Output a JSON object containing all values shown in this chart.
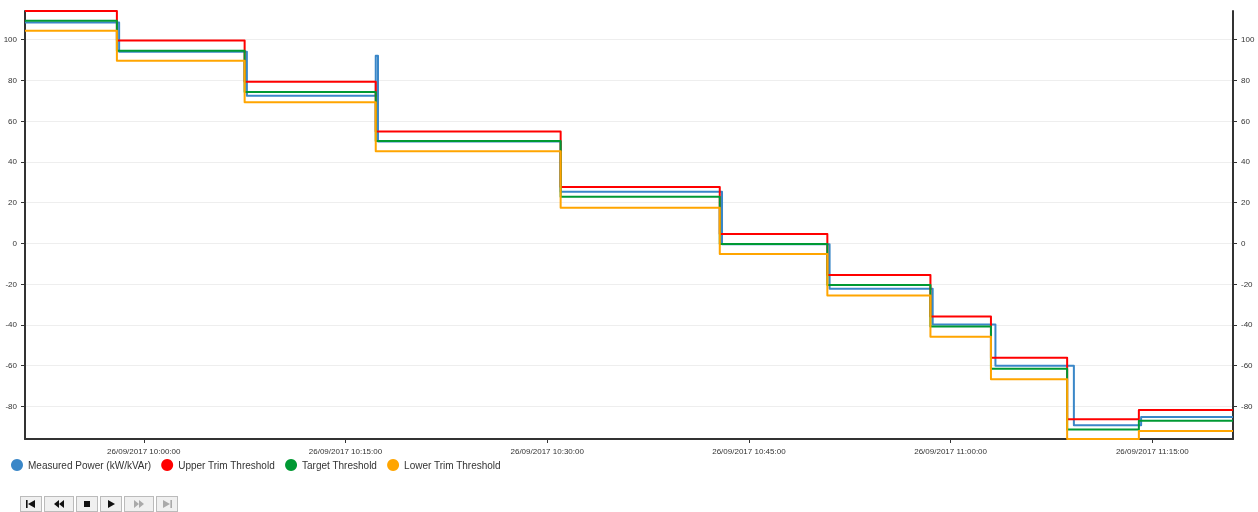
{
  "chart_data": {
    "type": "step",
    "xlim": [
      "2017-09-26T09:51:10",
      "2017-09-26T11:21:00"
    ],
    "xticks": [
      {
        "value": "2017-09-26T10:00",
        "label": "26/09/2017 10:00:00"
      },
      {
        "value": "2017-09-26T10:15",
        "label": "26/09/2017 10:15:00"
      },
      {
        "value": "2017-09-26T10:30",
        "label": "26/09/2017 10:30:00"
      },
      {
        "value": "2017-09-26T10:45",
        "label": "26/09/2017 10:45:00"
      },
      {
        "value": "2017-09-26T11:00",
        "label": "26/09/2017 11:00:00"
      },
      {
        "value": "2017-09-26T11:15",
        "label": "26/09/2017 11:15:00"
      }
    ],
    "ylim": [
      -96,
      114
    ],
    "yticks": [
      -80,
      -60,
      -40,
      -20,
      0,
      20,
      40,
      60,
      80,
      100
    ],
    "y2lim": [
      -96,
      114
    ],
    "y2ticks": [
      -80,
      -60,
      -40,
      -20,
      0,
      20,
      40,
      60,
      80,
      100
    ],
    "grid": "y",
    "legend": "bottom left",
    "series": [
      {
        "name": "Measured Power (kW/kVAr)",
        "color": "#3a87c8",
        "x": [
          "2017-09-26T09:51:10",
          "2017-09-26T09:58:10",
          "2017-09-26T10:07:40",
          "2017-09-26T10:17:15",
          "2017-09-26T10:17:25",
          "2017-09-26T10:31:00",
          "2017-09-26T10:43:00",
          "2017-09-26T10:51:00",
          "2017-09-26T10:58:40",
          "2017-09-26T11:03:20",
          "2017-09-26T11:09:10",
          "2017-09-26T11:14:10",
          "2017-09-26T11:21:00"
        ],
        "values": [
          108.4,
          94,
          72.4,
          92,
          50,
          25.3,
          -0.5,
          -22.3,
          -39.8,
          -60,
          -89.2,
          -85.2,
          -85.2
        ]
      },
      {
        "name": "Upper Trim Threshold",
        "color": "#ff0000",
        "x": [
          "2017-09-26T09:51:10",
          "2017-09-26T09:58:00",
          "2017-09-26T10:07:30",
          "2017-09-26T10:17:15",
          "2017-09-26T10:31:00",
          "2017-09-26T10:42:50",
          "2017-09-26T10:50:50",
          "2017-09-26T10:58:30",
          "2017-09-26T11:03:00",
          "2017-09-26T11:08:40",
          "2017-09-26T11:14:00",
          "2017-09-26T11:21:00"
        ],
        "values": [
          114,
          99.5,
          79.3,
          54.9,
          27.6,
          4.6,
          -15.5,
          -35.9,
          -56.1,
          -86.3,
          -81.8,
          -81.8
        ]
      },
      {
        "name": "Target Threshold",
        "color": "#009933",
        "x": [
          "2017-09-26T09:51:10",
          "2017-09-26T09:58:00",
          "2017-09-26T10:07:30",
          "2017-09-26T10:17:15",
          "2017-09-26T10:31:00",
          "2017-09-26T10:42:50",
          "2017-09-26T10:50:50",
          "2017-09-26T10:58:30",
          "2017-09-26T11:03:00",
          "2017-09-26T11:08:40",
          "2017-09-26T11:14:00",
          "2017-09-26T11:21:00"
        ],
        "values": [
          109.2,
          94.5,
          74.2,
          50.2,
          22.9,
          -0.3,
          -20.4,
          -40.8,
          -61.5,
          -91.3,
          -87.1,
          -87.1
        ]
      },
      {
        "name": "Lower Trim Threshold",
        "color": "#ffa500",
        "x": [
          "2017-09-26T09:51:10",
          "2017-09-26T09:58:00",
          "2017-09-26T10:07:30",
          "2017-09-26T10:17:15",
          "2017-09-26T10:31:00",
          "2017-09-26T10:42:50",
          "2017-09-26T10:50:50",
          "2017-09-26T10:58:30",
          "2017-09-26T11:03:00",
          "2017-09-26T11:08:40",
          "2017-09-26T11:14:00",
          "2017-09-26T11:21:00"
        ],
        "values": [
          104.3,
          89.6,
          69.2,
          45.2,
          17.5,
          -5.2,
          -25.6,
          -45.8,
          -66.7,
          -96,
          -92.1,
          -92.1
        ]
      }
    ]
  }
}
